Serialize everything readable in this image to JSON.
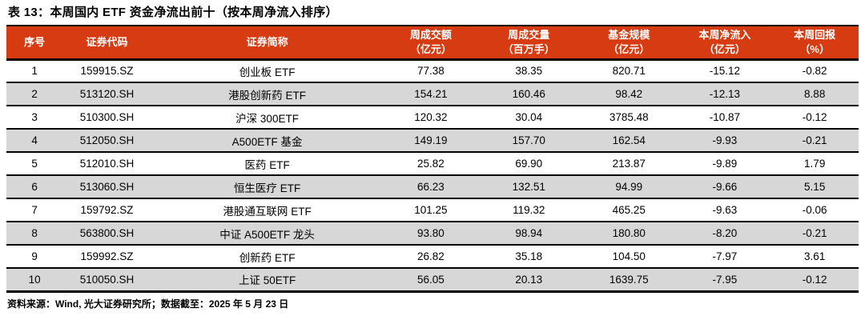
{
  "title": "表 13：本周国内 ETF 资金净流出前十（按本周净流入排序）",
  "source_note": "资料来源：Wind, 光大证券研究所；数据截至：2025 年 5 月 23 日",
  "colors": {
    "header_bg": "#D63B11",
    "header_text": "#FFFFFF",
    "row_alt_bg": "#D7D7D7",
    "border": "#000000"
  },
  "table": {
    "columns": [
      {
        "key": "rank",
        "label": "序号",
        "unit": ""
      },
      {
        "key": "code",
        "label": "证券代码",
        "unit": ""
      },
      {
        "key": "name",
        "label": "证券简称",
        "unit": ""
      },
      {
        "key": "turnover",
        "label": "周成交额",
        "unit": "（亿元）"
      },
      {
        "key": "volume",
        "label": "周成交量",
        "unit": "（百万手）"
      },
      {
        "key": "aum",
        "label": "基金规模",
        "unit": "（亿元）"
      },
      {
        "key": "net_inflow",
        "label": "本周净流入",
        "unit": "（亿元）"
      },
      {
        "key": "return",
        "label": "本周回报",
        "unit": "（%）"
      }
    ],
    "rows": [
      [
        "1",
        "159915.SZ",
        "创业板 ETF",
        "77.38",
        "38.35",
        "820.71",
        "-15.12",
        "-0.82"
      ],
      [
        "2",
        "513120.SH",
        "港股创新药 ETF",
        "154.21",
        "160.46",
        "98.42",
        "-12.13",
        "8.88"
      ],
      [
        "3",
        "510300.SH",
        "沪深 300ETF",
        "120.32",
        "30.04",
        "3785.48",
        "-10.87",
        "-0.12"
      ],
      [
        "4",
        "512050.SH",
        "A500ETF 基金",
        "149.19",
        "157.70",
        "162.54",
        "-9.93",
        "-0.21"
      ],
      [
        "5",
        "512010.SH",
        "医药 ETF",
        "25.82",
        "69.90",
        "213.87",
        "-9.89",
        "1.79"
      ],
      [
        "6",
        "513060.SH",
        "恒生医疗 ETF",
        "66.23",
        "132.51",
        "94.99",
        "-9.66",
        "5.15"
      ],
      [
        "7",
        "159792.SZ",
        "港股通互联网 ETF",
        "101.25",
        "119.32",
        "465.25",
        "-9.63",
        "-0.06"
      ],
      [
        "8",
        "563800.SH",
        "中证 A500ETF 龙头",
        "93.80",
        "98.94",
        "180.80",
        "-8.20",
        "-0.21"
      ],
      [
        "9",
        "159992.SZ",
        "创新药 ETF",
        "26.82",
        "35.18",
        "104.50",
        "-7.97",
        "3.61"
      ],
      [
        "10",
        "510050.SH",
        "上证 50ETF",
        "56.05",
        "20.13",
        "1639.75",
        "-7.95",
        "-0.12"
      ]
    ]
  }
}
